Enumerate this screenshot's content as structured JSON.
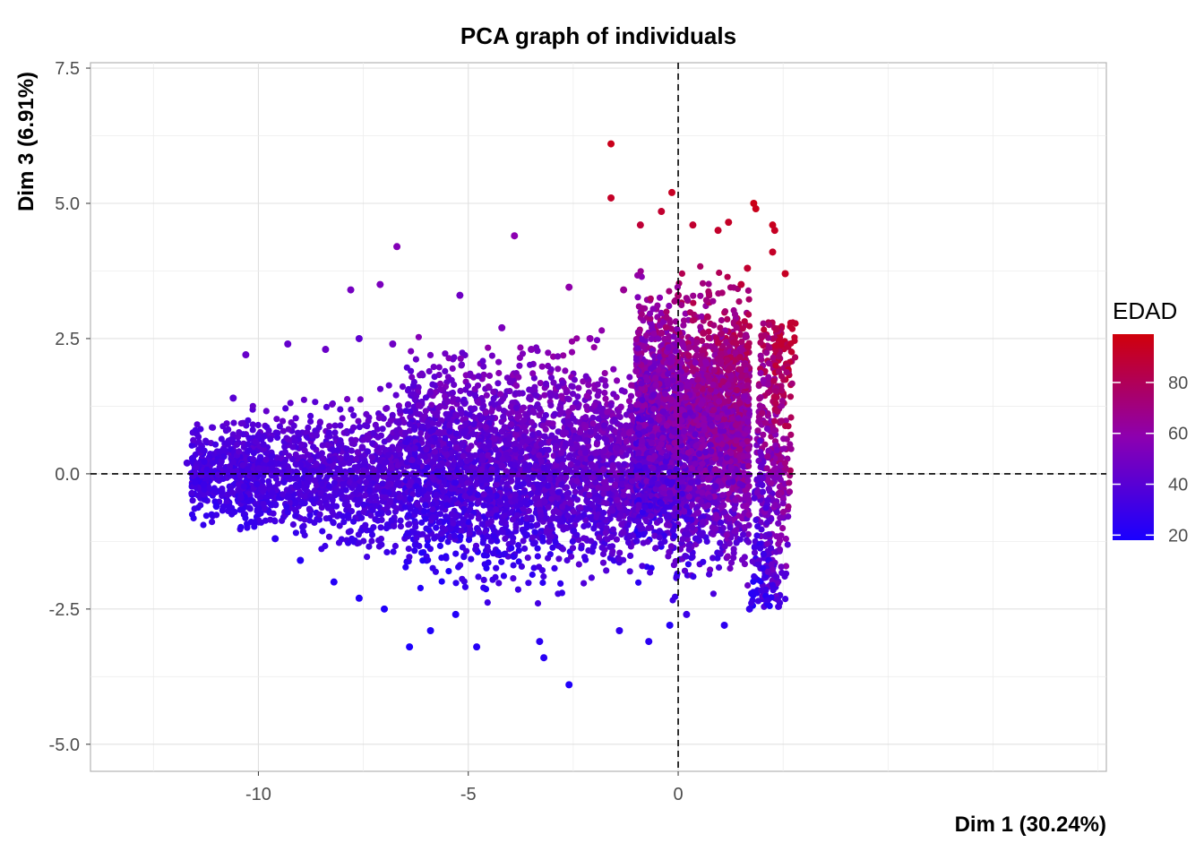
{
  "chart_data": {
    "type": "scatter",
    "title": "PCA graph of individuals",
    "xlabel": "Dim 1 (30.24%)",
    "ylabel": "Dim 3 (6.91%)",
    "xlim": [
      -14,
      10.2
    ],
    "ylim": [
      -5.5,
      7.6
    ],
    "x_ticks": [
      -10,
      -5,
      0
    ],
    "x_tick_labels": [
      "-10",
      "-5",
      "0"
    ],
    "y_ticks": [
      -5.0,
      -2.5,
      0.0,
      2.5,
      5.0,
      7.5
    ],
    "y_tick_labels": [
      "-5.0",
      "-2.5",
      "0.0",
      "2.5",
      "5.0",
      "7.5"
    ],
    "grid": true,
    "reference_lines": {
      "x": 0,
      "y": 0,
      "style": "dashed"
    },
    "legend": {
      "title": "EDAD",
      "placement": "right",
      "ticks": [
        20,
        40,
        60,
        80
      ],
      "tick_labels": [
        "20",
        "40",
        "60",
        "80"
      ],
      "range": [
        18,
        99
      ],
      "low_color": "#1a00ff",
      "high_color": "#d0000a"
    },
    "points": [
      [
        -1.6,
        6.1,
        95
      ],
      [
        -1.6,
        5.1,
        92
      ],
      [
        -0.9,
        4.6,
        88
      ],
      [
        -0.4,
        4.85,
        90
      ],
      [
        -0.15,
        5.2,
        93
      ],
      [
        0.35,
        4.6,
        90
      ],
      [
        0.95,
        4.5,
        91
      ],
      [
        1.2,
        4.65,
        92
      ],
      [
        1.8,
        5.0,
        96
      ],
      [
        1.85,
        4.9,
        95
      ],
      [
        2.25,
        4.6,
        94
      ],
      [
        2.3,
        4.5,
        93
      ],
      [
        2.25,
        4.1,
        92
      ],
      [
        2.55,
        3.7,
        93
      ],
      [
        1.65,
        3.8,
        90
      ],
      [
        -6.7,
        4.2,
        55
      ],
      [
        -3.9,
        4.4,
        58
      ],
      [
        -7.8,
        3.4,
        50
      ],
      [
        -7.1,
        3.5,
        52
      ],
      [
        -5.2,
        3.3,
        48
      ],
      [
        -2.6,
        3.45,
        60
      ],
      [
        -1.3,
        3.4,
        65
      ],
      [
        0.0,
        3.3,
        75
      ],
      [
        0.7,
        2.9,
        80
      ],
      [
        1.5,
        3.5,
        88
      ],
      [
        -10.3,
        2.2,
        45
      ],
      [
        -9.3,
        2.4,
        44
      ],
      [
        -8.4,
        2.3,
        46
      ],
      [
        -7.6,
        2.5,
        42
      ],
      [
        -6.8,
        2.4,
        48
      ],
      [
        -4.2,
        2.7,
        52
      ],
      [
        -3.5,
        2.3,
        55
      ],
      [
        -2.1,
        2.5,
        58
      ],
      [
        -0.4,
        2.6,
        70
      ],
      [
        0.6,
        2.6,
        78
      ],
      [
        -11.7,
        0.2,
        35
      ],
      [
        -11.3,
        -0.2,
        30
      ],
      [
        -11.0,
        -0.6,
        24
      ],
      [
        -10.6,
        1.4,
        40
      ],
      [
        -10.1,
        -0.9,
        28
      ],
      [
        -9.6,
        -1.2,
        25
      ],
      [
        -9.0,
        -1.6,
        22
      ],
      [
        -8.2,
        -2.0,
        22
      ],
      [
        -7.6,
        -2.3,
        21
      ],
      [
        -7.0,
        -2.5,
        20
      ],
      [
        -6.4,
        -3.2,
        19
      ],
      [
        -5.9,
        -2.9,
        20
      ],
      [
        -5.3,
        -2.6,
        21
      ],
      [
        -4.8,
        -3.2,
        22
      ],
      [
        -3.3,
        -3.1,
        24
      ],
      [
        -3.2,
        -3.4,
        23
      ],
      [
        -2.6,
        -3.9,
        20
      ],
      [
        -1.4,
        -2.9,
        26
      ],
      [
        -0.7,
        -3.1,
        24
      ],
      [
        -0.2,
        -2.8,
        22
      ],
      [
        0.2,
        -2.6,
        30
      ],
      [
        1.1,
        -2.8,
        25
      ],
      [
        1.7,
        -2.5,
        27
      ],
      [
        -4.0,
        1.7,
        48
      ],
      [
        -1.0,
        1.9,
        60
      ]
    ],
    "dense_regions": [
      {
        "name": "left cloud",
        "x_range": [
          -11.6,
          -6.5
        ],
        "y_range": [
          -2.0,
          2.0
        ],
        "age_range": [
          22,
          50
        ]
      },
      {
        "name": "central cloud",
        "x_range": [
          -6.5,
          -1.0
        ],
        "y_range": [
          -2.6,
          2.8
        ],
        "age_range": [
          20,
          62
        ]
      },
      {
        "name": "right cloud",
        "x_range": [
          -1.0,
          1.7
        ],
        "y_range": [
          -2.8,
          3.8
        ],
        "age_range": [
          20,
          85
        ]
      },
      {
        "name": "right band",
        "x_range": [
          1.7,
          2.5
        ],
        "y_range": [
          -2.5,
          2.8
        ],
        "age_range": [
          20,
          90
        ]
      }
    ]
  }
}
